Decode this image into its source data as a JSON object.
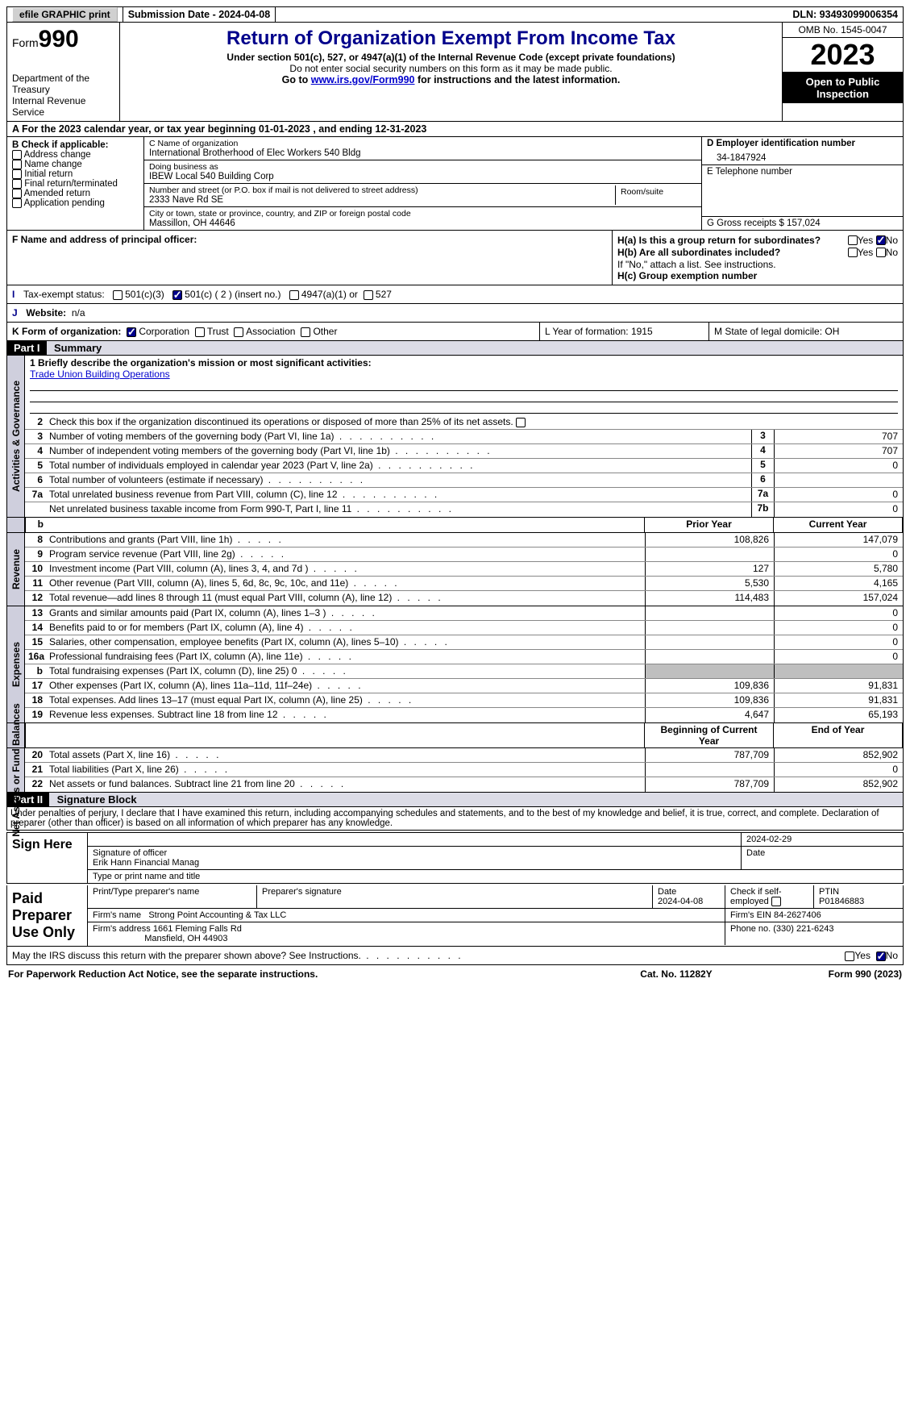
{
  "topbar": {
    "efile": "efile GRAPHIC print",
    "submission": "Submission Date - 2024-04-08",
    "dln": "DLN: 93493099006354"
  },
  "header": {
    "form_label": "Form",
    "form_no": "990",
    "dept": "Department of the Treasury\nInternal Revenue Service",
    "title": "Return of Organization Exempt From Income Tax",
    "sub1": "Under section 501(c), 527, or 4947(a)(1) of the Internal Revenue Code (except private foundations)",
    "sub2": "Do not enter social security numbers on this form as it may be made public.",
    "sub3_pre": "Go to ",
    "sub3_link": "www.irs.gov/Form990",
    "sub3_post": " for instructions and the latest information.",
    "omb": "OMB No. 1545-0047",
    "year": "2023",
    "open": "Open to Public Inspection"
  },
  "lineA": "For the 2023 calendar year, or tax year beginning 01-01-2023   , and ending 12-31-2023",
  "boxB": {
    "title": "B Check if applicable:",
    "items": [
      "Address change",
      "Name change",
      "Initial return",
      "Final return/terminated",
      "Amended return",
      "Application pending"
    ]
  },
  "boxC": {
    "lbl_name": "C Name of organization",
    "name": "International Brotherhood of Elec Workers 540 Bldg",
    "lbl_dba": "Doing business as",
    "dba": "IBEW Local 540 Building Corp",
    "lbl_addr": "Number and street (or P.O. box if mail is not delivered to street address)",
    "addr": "2333 Nave Rd SE",
    "lbl_room": "Room/suite",
    "lbl_city": "City or town, state or province, country, and ZIP or foreign postal code",
    "city": "Massillon, OH   44646"
  },
  "boxD": {
    "lbl": "D Employer identification number",
    "val": "34-1847924"
  },
  "boxE": {
    "lbl": "E Telephone number",
    "val": ""
  },
  "boxG": "G Gross receipts $ 157,024",
  "boxF": "F  Name and address of principal officer:",
  "boxH": {
    "a": "H(a)  Is this a group return for subordinates?",
    "b": "H(b)  Are all subordinates included?",
    "note": "If \"No,\" attach a list. See instructions.",
    "c": "H(c)  Group exemption number",
    "yes": "Yes",
    "no": "No"
  },
  "boxI": {
    "label": "Tax-exempt status:",
    "o1": "501(c)(3)",
    "o2": "501(c) ( 2 ) (insert no.)",
    "o3": "4947(a)(1) or",
    "o4": "527"
  },
  "boxJ": {
    "label": "Website:",
    "val": "n/a"
  },
  "boxK": {
    "label": "K Form of organization:",
    "o1": "Corporation",
    "o2": "Trust",
    "o3": "Association",
    "o4": "Other"
  },
  "boxL": "L Year of formation: 1915",
  "boxM": "M State of legal domicile: OH",
  "part1": {
    "hdr": "Part I",
    "title": "Summary"
  },
  "mission": {
    "line1": "1   Briefly describe the organization's mission or most significant activities:",
    "text": "Trade Union Building Operations"
  },
  "line2": "Check this box      if the organization discontinued its operations or disposed of more than 25% of its net assets.",
  "govrows": [
    {
      "n": "3",
      "d": "Number of voting members of the governing body (Part VI, line 1a)",
      "cn": "3",
      "v": "707"
    },
    {
      "n": "4",
      "d": "Number of independent voting members of the governing body (Part VI, line 1b)",
      "cn": "4",
      "v": "707"
    },
    {
      "n": "5",
      "d": "Total number of individuals employed in calendar year 2023 (Part V, line 2a)",
      "cn": "5",
      "v": "0"
    },
    {
      "n": "6",
      "d": "Total number of volunteers (estimate if necessary)",
      "cn": "6",
      "v": ""
    },
    {
      "n": "7a",
      "d": "Total unrelated business revenue from Part VIII, column (C), line 12",
      "cn": "7a",
      "v": "0"
    },
    {
      "n": "",
      "d": "Net unrelated business taxable income from Form 990-T, Part I, line 11",
      "cn": "7b",
      "v": "0"
    }
  ],
  "hdrB": {
    "prior": "Prior Year",
    "curr": "Current Year"
  },
  "revenue": [
    {
      "n": "8",
      "d": "Contributions and grants (Part VIII, line 1h)",
      "p": "108,826",
      "c": "147,079"
    },
    {
      "n": "9",
      "d": "Program service revenue (Part VIII, line 2g)",
      "p": "",
      "c": "0"
    },
    {
      "n": "10",
      "d": "Investment income (Part VIII, column (A), lines 3, 4, and 7d )",
      "p": "127",
      "c": "5,780"
    },
    {
      "n": "11",
      "d": "Other revenue (Part VIII, column (A), lines 5, 6d, 8c, 9c, 10c, and 11e)",
      "p": "5,530",
      "c": "4,165"
    },
    {
      "n": "12",
      "d": "Total revenue—add lines 8 through 11 (must equal Part VIII, column (A), line 12)",
      "p": "114,483",
      "c": "157,024"
    }
  ],
  "expenses": [
    {
      "n": "13",
      "d": "Grants and similar amounts paid (Part IX, column (A), lines 1–3 )",
      "p": "",
      "c": "0"
    },
    {
      "n": "14",
      "d": "Benefits paid to or for members (Part IX, column (A), line 4)",
      "p": "",
      "c": "0"
    },
    {
      "n": "15",
      "d": "Salaries, other compensation, employee benefits (Part IX, column (A), lines 5–10)",
      "p": "",
      "c": "0"
    },
    {
      "n": "16a",
      "d": "Professional fundraising fees (Part IX, column (A), line 11e)",
      "p": "",
      "c": "0"
    },
    {
      "n": "b",
      "d": "Total fundraising expenses (Part IX, column (D), line 25) 0",
      "p": "SHADE",
      "c": "SHADE"
    },
    {
      "n": "17",
      "d": "Other expenses (Part IX, column (A), lines 11a–11d, 11f–24e)",
      "p": "109,836",
      "c": "91,831"
    },
    {
      "n": "18",
      "d": "Total expenses. Add lines 13–17 (must equal Part IX, column (A), line 25)",
      "p": "109,836",
      "c": "91,831"
    },
    {
      "n": "19",
      "d": "Revenue less expenses. Subtract line 18 from line 12",
      "p": "4,647",
      "c": "65,193"
    }
  ],
  "hdrNet": {
    "beg": "Beginning of Current Year",
    "end": "End of Year"
  },
  "net": [
    {
      "n": "20",
      "d": "Total assets (Part X, line 16)",
      "p": "787,709",
      "c": "852,902"
    },
    {
      "n": "21",
      "d": "Total liabilities (Part X, line 26)",
      "p": "",
      "c": "0"
    },
    {
      "n": "22",
      "d": "Net assets or fund balances. Subtract line 21 from line 20",
      "p": "787,709",
      "c": "852,902"
    }
  ],
  "part2": {
    "hdr": "Part II",
    "title": "Signature Block"
  },
  "perjury": "Under penalties of perjury, I declare that I have examined this return, including accompanying schedules and statements, and to the best of my knowledge and belief, it is true, correct, and complete. Declaration of preparer (other than officer) is based on all information of which preparer has any knowledge.",
  "sign": {
    "here": "Sign Here",
    "sig_lbl": "Signature of officer",
    "officer": "Erik Hann  Financial Manag",
    "type_lbl": "Type or print name and title",
    "date_lbl": "Date",
    "date": "2024-02-29"
  },
  "paid": {
    "here": "Paid Preparer Use Only",
    "c1": "Print/Type preparer's name",
    "c2": "Preparer's signature",
    "c3": "Date",
    "c3v": "2024-04-08",
    "c4": "Check      if self-employed",
    "c5": "PTIN",
    "c5v": "P01846883",
    "firm_lbl": "Firm's name",
    "firm": "Strong Point Accounting & Tax LLC",
    "ein_lbl": "Firm's EIN",
    "ein": "84-2627406",
    "addr_lbl": "Firm's address",
    "addr1": "1661 Fleming Falls Rd",
    "addr2": "Mansfield, OH   44903",
    "phone_lbl": "Phone no.",
    "phone": "(330) 221-6243"
  },
  "discuss": "May the IRS discuss this return with the preparer shown above? See Instructions.",
  "footer": {
    "l": "For Paperwork Reduction Act Notice, see the separate instructions.",
    "c": "Cat. No. 11282Y",
    "r": "Form 990 (2023)"
  },
  "vtabs": {
    "gov": "Activities & Governance",
    "rev": "Revenue",
    "exp": "Expenses",
    "net": "Net Assets or Fund Balances"
  }
}
